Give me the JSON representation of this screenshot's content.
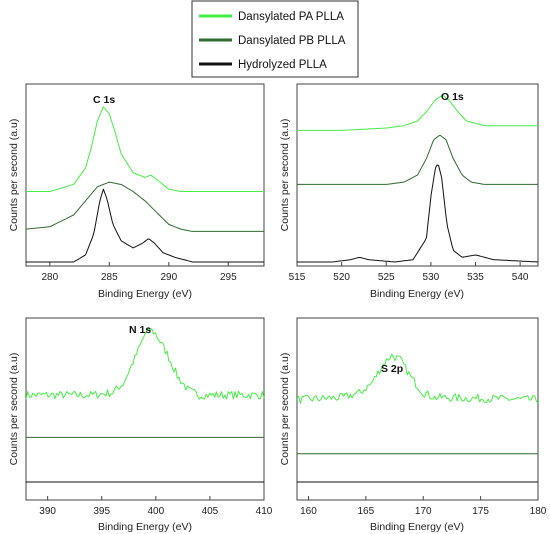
{
  "legend": [
    {
      "label": "Dansylated PA PLLA",
      "color": "#44ee44"
    },
    {
      "label": "Dansylated PB PLLA",
      "color": "#2f6b2f"
    },
    {
      "label": "Hydrolyzed PLLA",
      "color": "#111111"
    }
  ],
  "chart_data": [
    {
      "type": "line",
      "annotation": "C 1s",
      "xlabel": "Binding Energy (eV)",
      "ylabel": "Counts per second (a.u)",
      "xlim": [
        278,
        298
      ],
      "xticks": [
        280,
        285,
        290,
        295
      ],
      "yticks_shown": false,
      "series": [
        {
          "name": "Dansylated PA PLLA",
          "color": "#44ee44",
          "noisy": false,
          "x": [
            278,
            280,
            282,
            283,
            283.5,
            284,
            284.5,
            285,
            285.5,
            286,
            287,
            288,
            288.5,
            289,
            290,
            291,
            292,
            298
          ],
          "y": [
            0.3,
            0.3,
            0.33,
            0.4,
            0.49,
            0.6,
            0.66,
            0.63,
            0.55,
            0.46,
            0.38,
            0.36,
            0.37,
            0.35,
            0.31,
            0.3,
            0.3,
            0.3
          ]
        },
        {
          "name": "Dansylated PB PLLA",
          "color": "#2f6b2f",
          "noisy": false,
          "x": [
            278,
            280,
            282,
            283,
            284,
            285,
            286,
            287,
            288,
            289,
            290,
            291,
            292,
            298
          ],
          "y": [
            0.14,
            0.15,
            0.2,
            0.26,
            0.32,
            0.34,
            0.33,
            0.3,
            0.26,
            0.21,
            0.16,
            0.14,
            0.13,
            0.13
          ]
        },
        {
          "name": "Hydrolyzed PLLA",
          "color": "#111111",
          "noisy": false,
          "x": [
            278,
            282,
            283,
            283.7,
            284.2,
            284.5,
            284.8,
            285.3,
            286,
            287,
            287.8,
            288.3,
            288.8,
            289.5,
            290.5,
            292,
            298
          ],
          "y": [
            0.0,
            0.0,
            0.03,
            0.12,
            0.26,
            0.31,
            0.27,
            0.16,
            0.09,
            0.06,
            0.08,
            0.1,
            0.08,
            0.04,
            0.02,
            0.0,
            0.0
          ]
        }
      ]
    },
    {
      "type": "line",
      "annotation": "O 1s",
      "xlabel": "Binding Energy (eV)",
      "ylabel": "Counts per second (a.u)",
      "xlim": [
        515,
        542
      ],
      "xticks": [
        515,
        520,
        525,
        530,
        535,
        540
      ],
      "yticks_shown": false,
      "series": [
        {
          "name": "Dansylated PA PLLA",
          "color": "#44ee44",
          "noisy": false,
          "x": [
            515,
            520,
            525,
            527,
            528.5,
            529.5,
            530.5,
            531.3,
            532,
            533,
            534,
            535,
            536,
            538,
            542
          ],
          "y": [
            0.56,
            0.56,
            0.57,
            0.58,
            0.6,
            0.64,
            0.69,
            0.71,
            0.69,
            0.64,
            0.6,
            0.59,
            0.58,
            0.58,
            0.58
          ]
        },
        {
          "name": "Dansylated PB PLLA",
          "color": "#2f6b2f",
          "noisy": false,
          "x": [
            515,
            520,
            525,
            527,
            528.5,
            529.5,
            530.3,
            531,
            531.7,
            532.5,
            533.5,
            534.5,
            536,
            538,
            542
          ],
          "y": [
            0.33,
            0.33,
            0.33,
            0.34,
            0.37,
            0.44,
            0.52,
            0.54,
            0.52,
            0.44,
            0.37,
            0.34,
            0.33,
            0.33,
            0.33
          ]
        },
        {
          "name": "Hydrolyzed PLLA",
          "color": "#111111",
          "noisy": false,
          "x": [
            515,
            519,
            521,
            522,
            523,
            526,
            528,
            529.5,
            530,
            530.5,
            530.8,
            531.2,
            531.8,
            532.5,
            533.5,
            535,
            537,
            542
          ],
          "y": [
            0.0,
            0.0,
            0.01,
            0.02,
            0.01,
            0.0,
            0.01,
            0.1,
            0.28,
            0.4,
            0.42,
            0.36,
            0.16,
            0.05,
            0.02,
            0.03,
            0.01,
            0.0
          ]
        }
      ]
    },
    {
      "type": "line",
      "annotation": "N 1s",
      "xlabel": "Binding Energy (eV)",
      "ylabel": "Counts per second (a.u)",
      "xlim": [
        388,
        410
      ],
      "xticks": [
        390,
        395,
        400,
        405,
        410
      ],
      "yticks_shown": false,
      "series": [
        {
          "name": "Dansylated PA PLLA",
          "color": "#44ee44",
          "noisy": true,
          "x": [
            388,
            394,
            396,
            397,
            398,
            399,
            399.5,
            400,
            401,
            402,
            403,
            404,
            410
          ],
          "y": [
            0.37,
            0.37,
            0.38,
            0.42,
            0.52,
            0.63,
            0.65,
            0.63,
            0.55,
            0.45,
            0.39,
            0.37,
            0.37
          ]
        },
        {
          "name": "Dansylated PB PLLA",
          "color": "#2f6b2f",
          "noisy": false,
          "x": [
            388,
            410
          ],
          "y": [
            0.19,
            0.19
          ]
        },
        {
          "name": "Hydrolyzed PLLA",
          "color": "#111111",
          "noisy": false,
          "x": [
            388,
            410
          ],
          "y": [
            0.0,
            0.0
          ]
        }
      ]
    },
    {
      "type": "line",
      "annotation": "S 2p",
      "xlabel": "Binding Energy (eV)",
      "ylabel": "Counts per second (a.u)",
      "xlim": [
        159,
        180
      ],
      "xticks": [
        160,
        165,
        170,
        175,
        180
      ],
      "yticks_shown": false,
      "series": [
        {
          "name": "Dansylated PA PLLA",
          "color": "#44ee44",
          "noisy": true,
          "x": [
            159,
            163,
            164.5,
            165.5,
            166.5,
            167.2,
            168,
            169,
            170,
            171,
            180
          ],
          "y": [
            0.35,
            0.36,
            0.38,
            0.42,
            0.5,
            0.54,
            0.52,
            0.44,
            0.38,
            0.36,
            0.35
          ]
        },
        {
          "name": "Dansylated PB PLLA",
          "color": "#2f6b2f",
          "noisy": false,
          "x": [
            159,
            180
          ],
          "y": [
            0.12,
            0.12
          ]
        },
        {
          "name": "Hydrolyzed PLLA",
          "color": "#111111",
          "noisy": false,
          "x": [
            159,
            180
          ],
          "y": [
            0.0,
            0.0
          ]
        }
      ]
    }
  ]
}
